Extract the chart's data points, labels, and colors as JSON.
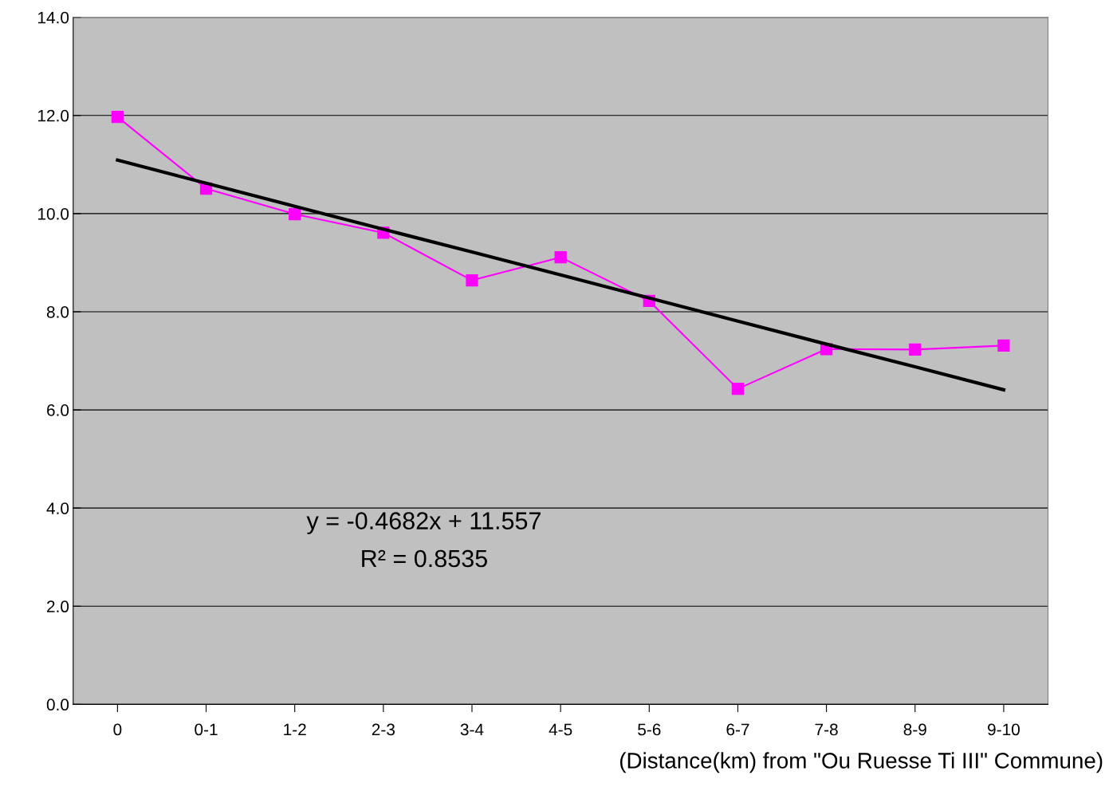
{
  "chart_data": {
    "type": "line",
    "xlabel": "(Distance(km) from \"Ou Ruesse Ti III\" Commune)",
    "categories": [
      "0",
      "0-1",
      "1-2",
      "2-3",
      "3-4",
      "4-5",
      "5-6",
      "6-7",
      "7-8",
      "8-9",
      "9-10"
    ],
    "series": [
      {
        "color": "#ff00ff",
        "marker": "square",
        "values": [
          11.97,
          10.51,
          9.99,
          9.61,
          8.64,
          9.11,
          8.22,
          6.43,
          7.24,
          7.23,
          7.31
        ]
      },
      {
        "type": "line",
        "color": "#000000",
        "marker": "none",
        "values": [
          11.09,
          10.62,
          10.15,
          9.68,
          9.22,
          8.75,
          8.28,
          7.81,
          7.34,
          6.88,
          6.41
        ]
      }
    ],
    "ylim": [
      0,
      14
    ],
    "yticks": [
      {
        "value": 0,
        "label": "0.0"
      },
      {
        "value": 2,
        "label": "2.0"
      },
      {
        "value": 4,
        "label": "4.0"
      },
      {
        "value": 6,
        "label": "6.0"
      },
      {
        "value": 8,
        "label": "8.0"
      },
      {
        "value": 10,
        "label": "10.0"
      },
      {
        "value": 12,
        "label": "12.0"
      },
      {
        "value": 14,
        "label": "14.0"
      }
    ],
    "grid": "y",
    "annotations": [
      "y = -0.4682x + 11.557",
      "R² = 0.8535"
    ]
  }
}
